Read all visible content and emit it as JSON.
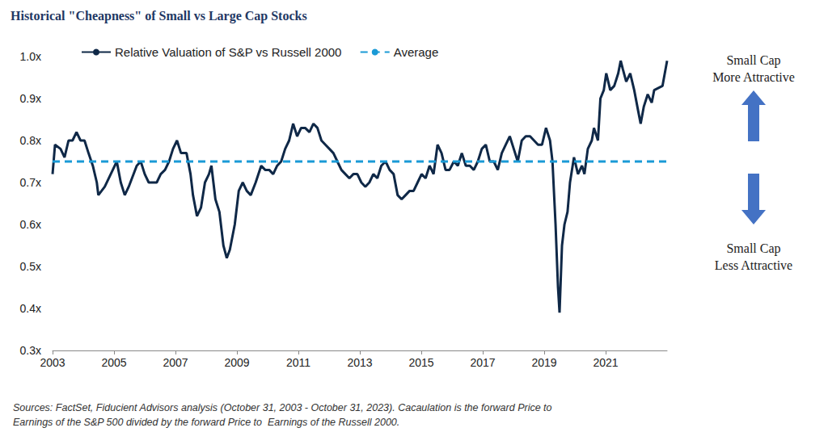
{
  "chart_data": {
    "type": "line",
    "title": "Historical \"Cheapness\" of Small vs Large Cap Stocks",
    "series": [
      {
        "name": "Relative Valuation of S&P vs Russell 2000",
        "color": "#0f2847",
        "line_style": "solid",
        "marker": "none",
        "x": [
          2003.0,
          2003.08,
          2003.26,
          2003.39,
          2003.52,
          2003.65,
          2003.78,
          2003.91,
          2004.04,
          2004.17,
          2004.31,
          2004.44,
          2004.49,
          2004.7,
          2004.96,
          2005.09,
          2005.22,
          2005.35,
          2005.48,
          2005.74,
          2005.87,
          2006.0,
          2006.13,
          2006.39,
          2006.52,
          2006.66,
          2006.79,
          2006.92,
          2007.05,
          2007.18,
          2007.36,
          2007.49,
          2007.57,
          2007.7,
          2007.83,
          2007.96,
          2008.09,
          2008.17,
          2008.3,
          2008.43,
          2008.56,
          2008.67,
          2008.77,
          2008.93,
          2009.06,
          2009.19,
          2009.32,
          2009.45,
          2009.61,
          2009.79,
          2009.92,
          2010.05,
          2010.18,
          2010.31,
          2010.44,
          2010.57,
          2010.7,
          2010.83,
          2010.96,
          2011.09,
          2011.22,
          2011.36,
          2011.49,
          2011.62,
          2011.75,
          2011.88,
          2012.01,
          2012.14,
          2012.27,
          2012.4,
          2012.53,
          2012.66,
          2012.79,
          2012.92,
          2013.05,
          2013.18,
          2013.31,
          2013.44,
          2013.57,
          2013.7,
          2013.84,
          2013.97,
          2014.1,
          2014.23,
          2014.36,
          2014.49,
          2014.62,
          2014.75,
          2014.88,
          2015.01,
          2015.14,
          2015.27,
          2015.4,
          2015.53,
          2015.66,
          2015.79,
          2015.92,
          2016.06,
          2016.19,
          2016.32,
          2016.45,
          2016.58,
          2016.71,
          2016.84,
          2016.97,
          2017.1,
          2017.23,
          2017.36,
          2017.49,
          2017.62,
          2017.75,
          2017.88,
          2018.01,
          2018.14,
          2018.27,
          2018.4,
          2018.54,
          2018.67,
          2018.8,
          2018.93,
          2019.06,
          2019.19,
          2019.27,
          2019.37,
          2019.45,
          2019.5,
          2019.58,
          2019.66,
          2019.76,
          2019.84,
          2019.97,
          2020.1,
          2020.23,
          2020.31,
          2020.42,
          2020.55,
          2020.62,
          2020.75,
          2020.83,
          2020.94,
          2021.02,
          2021.15,
          2021.28,
          2021.41,
          2021.49,
          2021.56,
          2021.67,
          2021.8,
          2021.93,
          2022.06,
          2022.14,
          2022.24,
          2022.37,
          2022.5,
          2022.58,
          2022.85,
          2023.0
        ],
        "values": [
          0.72,
          0.79,
          0.78,
          0.76,
          0.8,
          0.8,
          0.82,
          0.8,
          0.8,
          0.77,
          0.74,
          0.7,
          0.67,
          0.69,
          0.73,
          0.75,
          0.7,
          0.67,
          0.69,
          0.74,
          0.75,
          0.72,
          0.7,
          0.7,
          0.72,
          0.73,
          0.75,
          0.78,
          0.8,
          0.77,
          0.77,
          0.72,
          0.67,
          0.62,
          0.64,
          0.7,
          0.72,
          0.74,
          0.66,
          0.63,
          0.55,
          0.52,
          0.54,
          0.6,
          0.68,
          0.7,
          0.68,
          0.67,
          0.7,
          0.74,
          0.73,
          0.73,
          0.72,
          0.74,
          0.75,
          0.78,
          0.8,
          0.84,
          0.81,
          0.83,
          0.83,
          0.82,
          0.84,
          0.83,
          0.8,
          0.79,
          0.78,
          0.77,
          0.75,
          0.73,
          0.72,
          0.71,
          0.72,
          0.72,
          0.7,
          0.69,
          0.7,
          0.72,
          0.71,
          0.74,
          0.75,
          0.73,
          0.72,
          0.67,
          0.66,
          0.67,
          0.68,
          0.68,
          0.7,
          0.72,
          0.71,
          0.74,
          0.72,
          0.79,
          0.77,
          0.73,
          0.73,
          0.75,
          0.74,
          0.77,
          0.74,
          0.74,
          0.73,
          0.75,
          0.78,
          0.79,
          0.75,
          0.75,
          0.73,
          0.77,
          0.79,
          0.81,
          0.78,
          0.75,
          0.8,
          0.81,
          0.81,
          0.8,
          0.79,
          0.79,
          0.83,
          0.8,
          0.75,
          0.6,
          0.45,
          0.39,
          0.55,
          0.6,
          0.63,
          0.7,
          0.76,
          0.72,
          0.74,
          0.72,
          0.78,
          0.8,
          0.83,
          0.8,
          0.9,
          0.92,
          0.96,
          0.92,
          0.93,
          0.96,
          0.99,
          0.97,
          0.94,
          0.96,
          0.92,
          0.87,
          0.84,
          0.88,
          0.91,
          0.89,
          0.92,
          0.93,
          0.99
        ]
      },
      {
        "name": "Average",
        "color": "#1a9ad6",
        "line_style": "dashed",
        "marker": "none",
        "x": [
          2003,
          2023
        ],
        "values": [
          0.75,
          0.75
        ]
      }
    ],
    "xlim": [
      2003,
      2023
    ],
    "xticks": [
      2003,
      2005,
      2007,
      2009,
      2011,
      2013,
      2015,
      2017,
      2019,
      2021
    ],
    "ylim": [
      0.3,
      1.0
    ],
    "yticks": [
      {
        "value": 0.3,
        "label": "0.3x"
      },
      {
        "value": 0.4,
        "label": "0.4x"
      },
      {
        "value": 0.5,
        "label": "0.5x"
      },
      {
        "value": 0.6,
        "label": "0.6x"
      },
      {
        "value": 0.7,
        "label": "0.7x"
      },
      {
        "value": 0.8,
        "label": "0.8x"
      },
      {
        "value": 0.9,
        "label": "0.9x"
      },
      {
        "value": 1.0,
        "label": "1.0x"
      }
    ],
    "grid": false,
    "legend": "top",
    "annotations": [
      [
        "Small Cap",
        "More Attractive"
      ],
      [
        "Small Cap",
        "Less Attractive"
      ]
    ],
    "source": [
      "Sources: FactSet, Fiducient Advisors analysis (October 31, 2003 - October 31, 2023). Cacaulation is the forward Price to",
      "Earnings of the S&P 500 divided by the forward Price to  Earnings of the Russell 2000."
    ]
  }
}
